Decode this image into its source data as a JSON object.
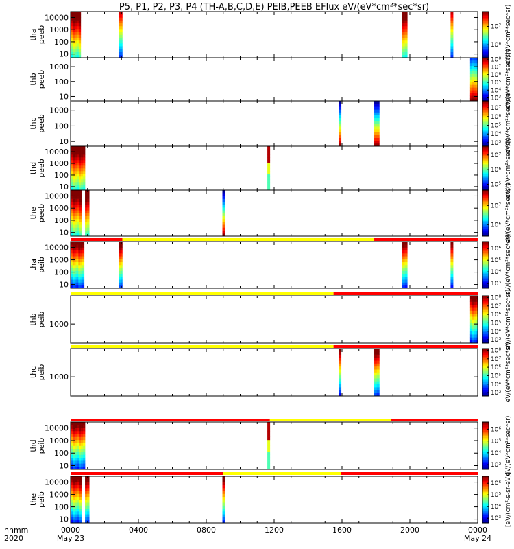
{
  "chart_data": {
    "type": "heatmap",
    "title": "P5, P1, P2, P3, P4 (TH-A,B,C,D,E) PEIB,PEEB EFlux eV/(eV*cm²*sec*sr)",
    "x_ticks": [
      "0000",
      "0400",
      "0800",
      "1200",
      "1600",
      "2000",
      "0000"
    ],
    "x_range_hours": [
      0,
      24
    ],
    "x_date_labels": [
      {
        "hour": 0,
        "label": "May 23"
      },
      {
        "hour": 24,
        "label": "May 24"
      }
    ],
    "x_corner_labels": [
      "hhmm",
      "2020"
    ],
    "colorbar_label": "eV/(eV*cm²*sec*sr)",
    "colorbar_label_last": "[eV/(cm²-s-sr-eV)]",
    "panels": [
      {
        "probe": "tha",
        "species": "peeb",
        "label": [
          "tha",
          "peeb"
        ],
        "y_ticks": [
          "10",
          "100",
          "1000",
          "10000"
        ],
        "y_range": [
          5,
          30000
        ],
        "cb_ticks": [
          "10⁶",
          "10⁷"
        ],
        "cb_range_exp": [
          5.3,
          7.8
        ],
        "mode_bar": null,
        "bursts": [
          {
            "t0": 0.0,
            "t1": 0.6,
            "profile": "hot"
          },
          {
            "t0": 2.85,
            "t1": 3.05,
            "profile": "flat"
          },
          {
            "t0": 19.55,
            "t1": 19.85,
            "profile": "hot"
          },
          {
            "t0": 22.4,
            "t1": 22.55,
            "profile": "flat"
          }
        ]
      },
      {
        "probe": "thb",
        "species": "peeb",
        "label": [
          "thb",
          "peeb"
        ],
        "y_ticks": [
          "10",
          "100",
          "1000"
        ],
        "y_range": [
          5,
          4000
        ],
        "cb_ticks": [
          "10³",
          "10⁴",
          "10⁵",
          "10⁶",
          "10⁷",
          "10⁸"
        ],
        "cb_range_exp": [
          2.6,
          8.2
        ],
        "mode_bar": null,
        "bursts": [
          {
            "t0": 23.55,
            "t1": 24.0,
            "profile": "cool"
          }
        ]
      },
      {
        "probe": "thc",
        "species": "peeb",
        "label": [
          "thc",
          "peeb"
        ],
        "y_ticks": [
          "10",
          "100",
          "1000"
        ],
        "y_range": [
          5,
          4000
        ],
        "cb_ticks": [
          "10³",
          "10⁴",
          "10⁵",
          "10⁶",
          "10⁷"
        ],
        "cb_range_exp": [
          2.6,
          7.8
        ],
        "mode_bar": null,
        "bursts": [
          {
            "t0": 15.8,
            "t1": 15.95,
            "profile": "rainbow"
          },
          {
            "t0": 17.9,
            "t1": 18.2,
            "profile": "rainbow"
          }
        ]
      },
      {
        "probe": "thd",
        "species": "peeb",
        "label": [
          "thd",
          "peeb"
        ],
        "y_ticks": [
          "10",
          "100",
          "1000",
          "10000"
        ],
        "y_range": [
          5,
          30000
        ],
        "cb_ticks": [
          "10⁵",
          "10⁶",
          "10⁷"
        ],
        "cb_range_exp": [
          4.6,
          7.6
        ],
        "mode_bar": null,
        "bursts": [
          {
            "t0": 0.0,
            "t1": 0.85,
            "profile": "hot"
          },
          {
            "t0": 11.6,
            "t1": 11.75,
            "profile": "green"
          }
        ]
      },
      {
        "probe": "the",
        "species": "peeb",
        "label": [
          "the",
          "peeb"
        ],
        "y_ticks": [
          "10",
          "100",
          "1000",
          "10000"
        ],
        "y_range": [
          5,
          30000
        ],
        "cb_ticks": [
          "10⁶",
          "10⁷"
        ],
        "cb_range_exp": [
          5.4,
          7.8
        ],
        "mode_bar": null,
        "bursts": [
          {
            "t0": 0.0,
            "t1": 0.65,
            "profile": "hot"
          },
          {
            "t0": 0.85,
            "t1": 1.1,
            "profile": "hot"
          },
          {
            "t0": 8.95,
            "t1": 9.1,
            "profile": "rainbow"
          }
        ]
      },
      {
        "probe": "tha",
        "species": "peib",
        "label": [
          "tha",
          "peib"
        ],
        "y_ticks": [
          "10",
          "100",
          "1000",
          "10000"
        ],
        "y_range": [
          5,
          30000
        ],
        "cb_ticks": [
          "10³",
          "10⁴",
          "10⁵",
          "10⁶"
        ],
        "cb_range_exp": [
          2.6,
          6.6
        ],
        "mode_bar": [
          {
            "t0": 0,
            "t1": 3.05,
            "color": "#ff0000"
          },
          {
            "t0": 3.05,
            "t1": 17.9,
            "color": "#ffff00"
          },
          {
            "t0": 17.9,
            "t1": 24,
            "color": "#ff0000"
          }
        ],
        "bursts": [
          {
            "t0": 0.0,
            "t1": 0.8,
            "profile": "ion"
          },
          {
            "t0": 2.85,
            "t1": 3.05,
            "profile": "ion"
          },
          {
            "t0": 19.55,
            "t1": 19.85,
            "profile": "ion"
          },
          {
            "t0": 22.4,
            "t1": 22.55,
            "profile": "ion"
          }
        ]
      },
      {
        "probe": "thb",
        "species": "peib",
        "label": [
          "thb",
          "peib"
        ],
        "y_ticks": [
          "1000"
        ],
        "y_range": [
          100,
          30000
        ],
        "cb_ticks": [
          "10³",
          "10⁴",
          "10⁵",
          "10⁶",
          "10⁷",
          "10⁸"
        ],
        "cb_range_exp": [
          2.6,
          8.2
        ],
        "mode_bar": [
          {
            "t0": 0,
            "t1": 15.5,
            "color": "#ffff00"
          },
          {
            "t0": 15.5,
            "t1": 24,
            "color": "#ff0000"
          }
        ],
        "bursts": [
          {
            "t0": 23.55,
            "t1": 24.0,
            "profile": "ion"
          }
        ]
      },
      {
        "probe": "thc",
        "species": "peib",
        "label": [
          "thc",
          "peib"
        ],
        "y_ticks": [
          "1000"
        ],
        "y_range": [
          100,
          30000
        ],
        "cb_ticks": [
          "10³",
          "10⁴",
          "10⁵",
          "10⁶",
          "10⁷",
          "10⁸"
        ],
        "cb_range_exp": [
          2.6,
          8.2
        ],
        "mode_bar": [
          {
            "t0": 0,
            "t1": 15.5,
            "color": "#ffff00"
          },
          {
            "t0": 15.5,
            "t1": 24,
            "color": "#ff0000"
          }
        ],
        "bursts": [
          {
            "t0": 15.8,
            "t1": 15.95,
            "profile": "ion"
          },
          {
            "t0": 17.9,
            "t1": 18.2,
            "profile": "ion"
          }
        ]
      },
      {
        "probe": "thd",
        "species": "peib",
        "label": [
          "thd",
          "peib"
        ],
        "y_ticks": [
          "10",
          "100",
          "1000",
          "10000"
        ],
        "y_range": [
          5,
          30000
        ],
        "cb_ticks": [
          "10³",
          "10⁴",
          "10⁵",
          "10⁶"
        ],
        "cb_range_exp": [
          2.6,
          6.6
        ],
        "mode_bar": [
          {
            "t0": 0,
            "t1": 11.75,
            "color": "#ff0000"
          },
          {
            "t0": 11.75,
            "t1": 18.9,
            "color": "#ffff00"
          },
          {
            "t0": 18.9,
            "t1": 24,
            "color": "#ff0000"
          }
        ],
        "bursts": [
          {
            "t0": 0.0,
            "t1": 0.85,
            "profile": "ion"
          },
          {
            "t0": 11.6,
            "t1": 11.75,
            "profile": "green"
          }
        ]
      },
      {
        "probe": "the",
        "species": "peib",
        "label": [
          "the",
          "peib"
        ],
        "y_ticks": [
          "10",
          "100",
          "1000",
          "10000"
        ],
        "y_range": [
          5,
          30000
        ],
        "cb_ticks": [
          "10³",
          "10⁴",
          "10⁵",
          "10⁶"
        ],
        "cb_range_exp": [
          2.6,
          6.6
        ],
        "mode_bar": [
          {
            "t0": 0,
            "t1": 9.0,
            "color": "#ff0000"
          },
          {
            "t0": 9.0,
            "t1": 15.95,
            "color": "#ffff00"
          },
          {
            "t0": 15.95,
            "t1": 24,
            "color": "#ff0000"
          }
        ],
        "bursts": [
          {
            "t0": 0.0,
            "t1": 0.65,
            "profile": "ion"
          },
          {
            "t0": 0.85,
            "t1": 1.1,
            "profile": "ion"
          },
          {
            "t0": 8.95,
            "t1": 9.1,
            "profile": "ion"
          }
        ]
      }
    ]
  }
}
